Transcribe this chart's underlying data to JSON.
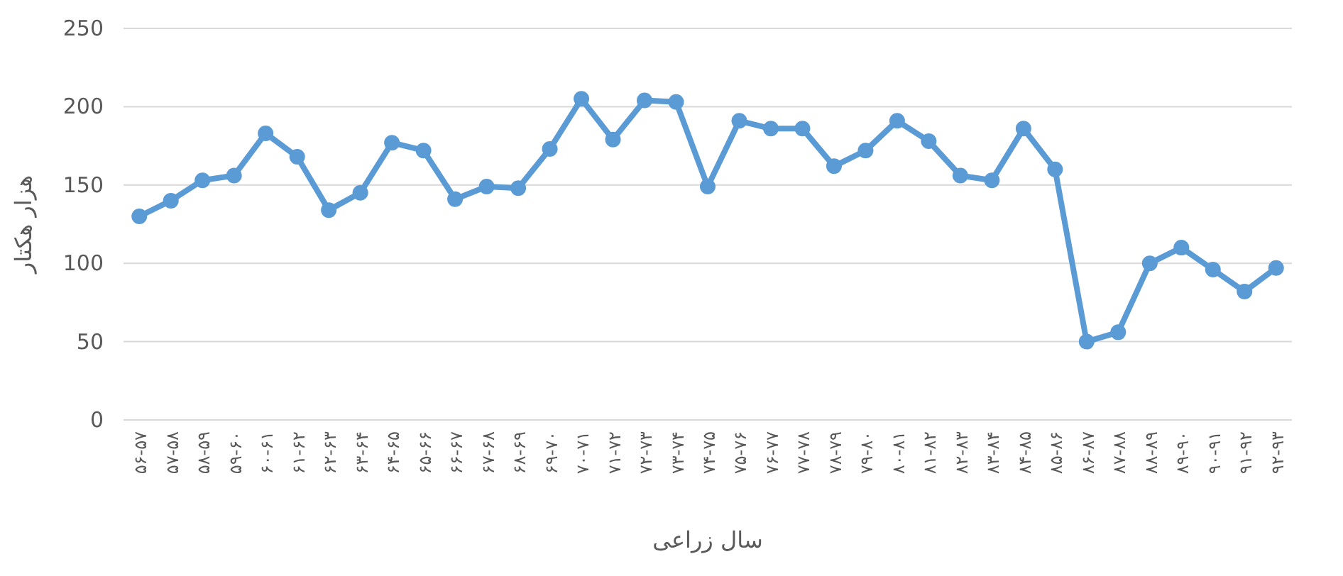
{
  "chart_data": {
    "type": "line",
    "xlabel": "سال زراعی",
    "ylabel": "هزار هکتار",
    "categories": [
      "۵۶-۵۷",
      "۵۷-۵۸",
      "۵۸-۵۹",
      "۵۹-۶۰",
      "۶۰-۶۱",
      "۶۱-۶۲",
      "۶۲-۶۳",
      "۶۳-۶۴",
      "۶۴-۶۵",
      "۶۵-۶۶",
      "۶۶-۶۷",
      "۶۷-۶۸",
      "۶۸-۶۹",
      "۶۹-۷۰",
      "۷۰-۷۱",
      "۷۱-۷۲",
      "۷۲-۷۳",
      "۷۳-۷۴",
      "۷۴-۷۵",
      "۷۵-۷۶",
      "۷۶-۷۷",
      "۷۷-۷۸",
      "۷۸-۷۹",
      "۷۹-۸۰",
      "۸۰-۸۱",
      "۸۱-۸۲",
      "۸۲-۸۳",
      "۸۳-۸۴",
      "۸۴-۸۵",
      "۸۵-۸۶",
      "۸۶-۸۷",
      "۸۷-۸۸",
      "۸۸-۸۹",
      "۸۹-۹۰",
      "۹۰-۹۱",
      "۹۱-۹۲",
      "۹۲-۹۳"
    ],
    "series": [
      {
        "color": "#5b9bd5",
        "values": [
          130,
          140,
          153,
          156,
          183,
          168,
          134,
          145,
          177,
          172,
          141,
          149,
          148,
          173,
          205,
          179,
          204,
          203,
          149,
          191,
          186,
          186,
          162,
          172,
          191,
          178,
          156,
          153,
          186,
          160,
          50,
          56,
          100,
          110,
          96,
          82,
          97
        ]
      }
    ],
    "ylim": [
      0,
      250
    ],
    "yticks": [
      0,
      50,
      100,
      150,
      200,
      250
    ],
    "grid": "y",
    "marker": "circle",
    "line_style": "solid"
  }
}
